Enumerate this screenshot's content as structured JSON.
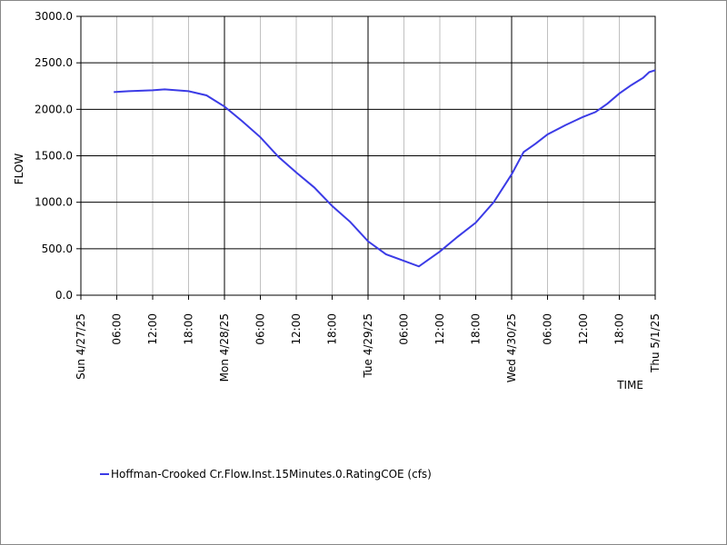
{
  "chart_data": {
    "type": "line",
    "x_label": "TIME",
    "y_label": "FLOW",
    "xlim": [
      0,
      96
    ],
    "xticks": [
      {
        "value": 0,
        "label": "Sun 4/27/25"
      },
      {
        "value": 6,
        "label": "06:00"
      },
      {
        "value": 12,
        "label": "12:00"
      },
      {
        "value": 18,
        "label": "18:00"
      },
      {
        "value": 24,
        "label": "Mon 4/28/25"
      },
      {
        "value": 30,
        "label": "06:00"
      },
      {
        "value": 36,
        "label": "12:00"
      },
      {
        "value": 42,
        "label": "18:00"
      },
      {
        "value": 48,
        "label": "Tue 4/29/25"
      },
      {
        "value": 54,
        "label": "06:00"
      },
      {
        "value": 60,
        "label": "12:00"
      },
      {
        "value": 66,
        "label": "18:00"
      },
      {
        "value": 72,
        "label": "Wed 4/30/25"
      },
      {
        "value": 78,
        "label": "06:00"
      },
      {
        "value": 84,
        "label": "12:00"
      },
      {
        "value": 90,
        "label": "18:00"
      },
      {
        "value": 96,
        "label": "Thu 5/1/25"
      }
    ],
    "ylim": [
      0,
      3000
    ],
    "yticks": [
      {
        "value": 0,
        "label": "0.0"
      },
      {
        "value": 500,
        "label": "500.0"
      },
      {
        "value": 1000,
        "label": "1000.0"
      },
      {
        "value": 1500,
        "label": "1500.0"
      },
      {
        "value": 2000,
        "label": "2000.0"
      },
      {
        "value": 2500,
        "label": "2500.0"
      },
      {
        "value": 3000,
        "label": "3000.0"
      }
    ],
    "grid": true,
    "x": [
      5.5,
      8,
      12,
      14,
      18,
      21,
      24,
      27,
      30,
      33,
      36,
      39,
      42,
      45,
      48,
      51,
      54,
      56.5,
      60,
      63,
      66,
      69,
      72,
      74,
      76,
      78,
      81,
      84,
      86,
      88,
      90,
      92,
      94,
      95,
      96
    ],
    "series": [
      {
        "name": "Hoffman-Crooked Cr.Flow.Inst.15Minutes.0.RatingCOE (cfs)",
        "color": "#3b3be6",
        "values": [
          2185,
          2195,
          2205,
          2215,
          2195,
          2150,
          2030,
          1870,
          1700,
          1490,
          1320,
          1160,
          960,
          790,
          580,
          440,
          370,
          310,
          470,
          630,
          780,
          1000,
          1300,
          1540,
          1630,
          1730,
          1830,
          1920,
          1970,
          2060,
          2170,
          2260,
          2340,
          2400,
          2420
        ]
      }
    ]
  }
}
